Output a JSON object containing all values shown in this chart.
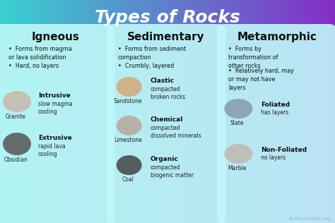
{
  "title": "Types of Rocks",
  "title_color": "#ffffff",
  "title_fontsize": 18,
  "bg_left": "#40d8d8",
  "bg_right": "#8030c8",
  "panel_color": "#c0f8f8",
  "columns": [
    {
      "header": "Igneous",
      "bullet1": "Forms from magma\nor lava solidification",
      "bullet2": "Hard, no layers",
      "sub1_bold": "Intrusive",
      "sub1_desc": "slow magma\ncooling",
      "sub1_rock": "Granite",
      "sub2_bold": "Extrusive",
      "sub2_desc": "rapid lava\ncooling",
      "sub2_rock": "Obsidian"
    },
    {
      "header": "Sedimentary",
      "bullet1": "Forms from sediment\ncompaction",
      "bullet2": "Crumbly, layered",
      "sub1_bold": "Clastic",
      "sub1_desc": "compacted\nbroken rocks",
      "sub1_rock": "Sandstone",
      "sub2_bold": "Chemical",
      "sub2_desc": "compacted\ndissolved minerals",
      "sub2_rock": "Limestone",
      "sub3_bold": "Organic",
      "sub3_desc": "compacted\nbiogenic matter",
      "sub3_rock": "Coal"
    },
    {
      "header": "Metamorphic",
      "bullet1": "Forms by\ntransformation of\nother rocks",
      "bullet2": "Relatively hard, may\nor may not have\nlayers",
      "sub1_bold": "Foliated",
      "sub1_desc": "has layers",
      "sub1_rock": "Slate",
      "sub2_bold": "Non-Foliated",
      "sub2_desc": "no layers",
      "sub2_rock": "Marble"
    }
  ],
  "watermark": "sciencenotes.org",
  "watermark_color": "#aaaacc"
}
